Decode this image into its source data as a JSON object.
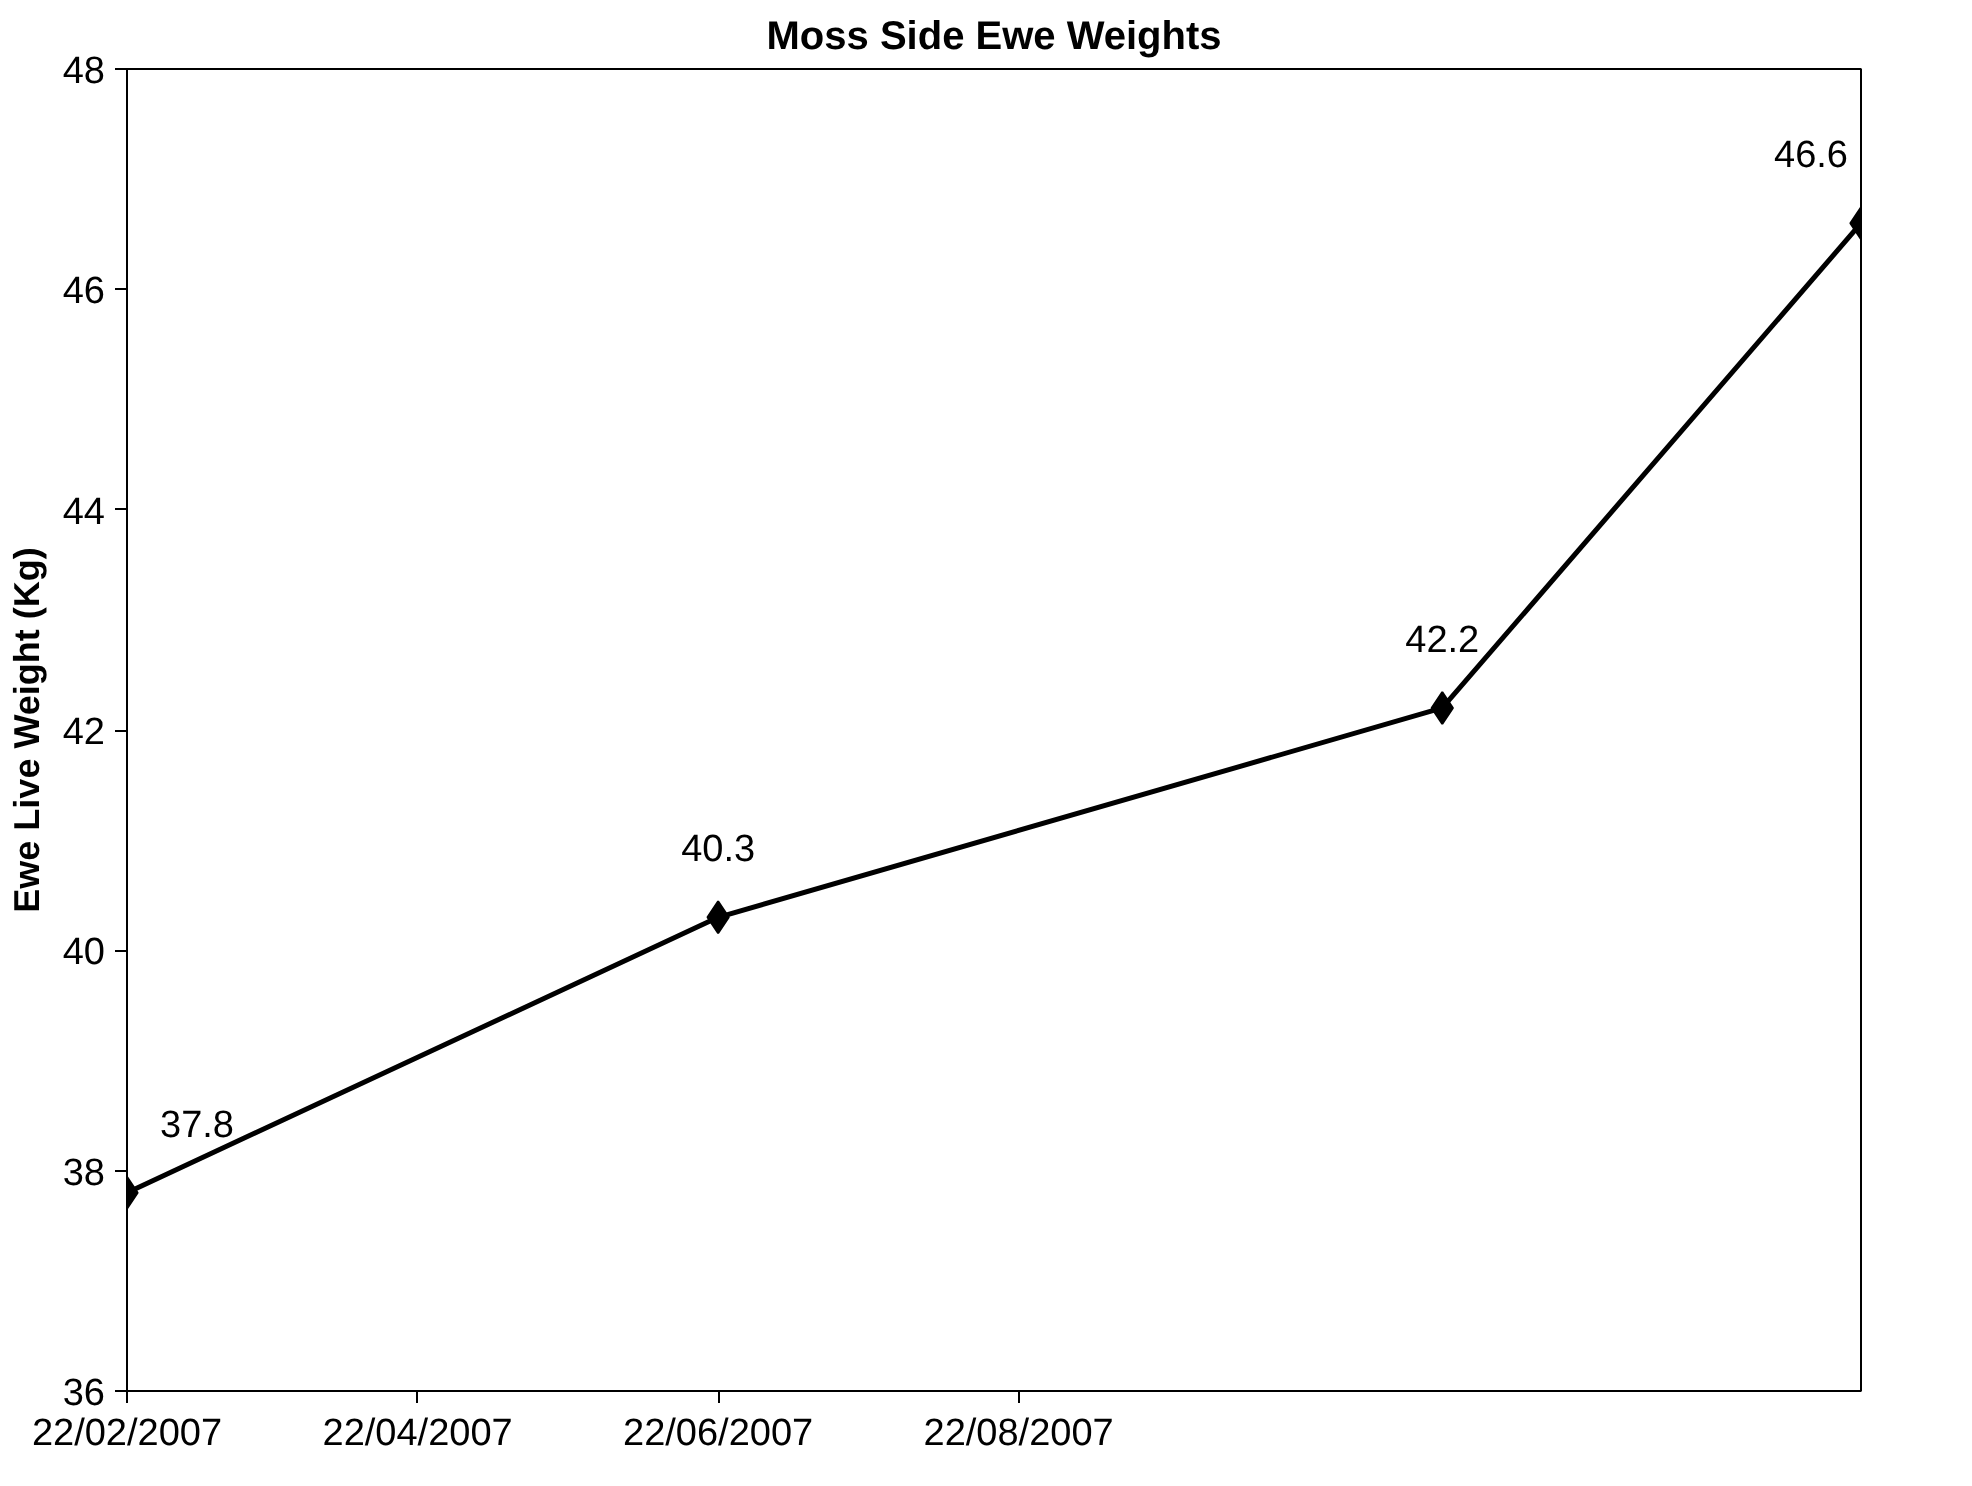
{
  "chart_data": {
    "type": "line",
    "title": "Moss Side Ewe Weights",
    "ylabel": "Ewe Live Weight (Kg)",
    "x": [
      "2007-02-22",
      "2007-06-22",
      "2007-11-16",
      "2008-02-09"
    ],
    "series": [
      {
        "color": "#000000",
        "values": [
          37.8,
          40.3,
          42.2,
          46.6
        ]
      }
    ],
    "xlim": [
      "2007-02-22",
      "2008-02-09"
    ],
    "xticks": [
      {
        "value": "2007-02-22",
        "label": "22/02/2007"
      },
      {
        "value": "2007-04-22",
        "label": "22/04/2007"
      },
      {
        "value": "2007-06-22",
        "label": "22/06/2007"
      },
      {
        "value": "2007-08-22",
        "label": "22/08/2007"
      }
    ],
    "ylim": [
      36,
      48
    ],
    "yticks": [
      36,
      38,
      40,
      42,
      44,
      46,
      48
    ],
    "grid": false,
    "marker": "diamond",
    "line_style": "solid",
    "data_labels": true
  }
}
